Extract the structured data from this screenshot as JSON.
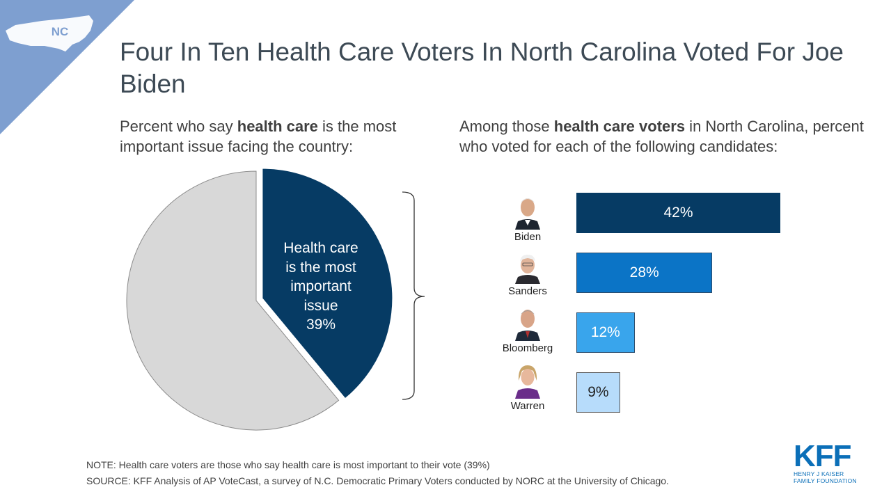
{
  "colors": {
    "corner": "#7e9fd0",
    "pie_highlight": "#063b64",
    "pie_rest": "#d8d8d8",
    "bar_biden": "#063b64",
    "bar_sanders": "#0b74c6",
    "bar_bloomberg": "#39a5ec",
    "bar_warren": "#b7dcfb",
    "kff": "#0b6fb8"
  },
  "state_badge": "NC",
  "title": "Four In Ten Health Care Voters In North Carolina Voted For Joe Biden",
  "left_subtitle": {
    "pre": "Percent who say ",
    "bold": "health care",
    "post": " is the most important issue facing the country:"
  },
  "right_subtitle": {
    "pre": "Among those ",
    "bold": "health care voters",
    "post": " in North Carolina, percent who voted for each of the following candidates:"
  },
  "pie_label": {
    "lines": [
      "Health care",
      "is the most",
      "important",
      "issue",
      "39%"
    ]
  },
  "chart_data": [
    {
      "type": "pie",
      "slices": [
        {
          "label": "Health care is the most important issue",
          "value": 39
        },
        {
          "label": "",
          "value": 61
        }
      ]
    },
    {
      "type": "bar",
      "orientation": "horizontal",
      "categories": [
        "Biden",
        "Sanders",
        "Bloomberg",
        "Warren"
      ],
      "values": [
        42,
        28,
        12,
        9
      ],
      "value_labels": [
        "42%",
        "28%",
        "12%",
        "9%"
      ]
    }
  ],
  "notes": {
    "note": "NOTE: Health care voters are those who say health care is most important to their vote (39%)",
    "source": "SOURCE: KFF Analysis of AP VoteCast, a survey of N.C. Democratic Primary Voters conducted by NORC at the University of Chicago."
  },
  "logo": {
    "big": "KFF",
    "line1": "HENRY J KAISER",
    "line2": "FAMILY FOUNDATION"
  }
}
